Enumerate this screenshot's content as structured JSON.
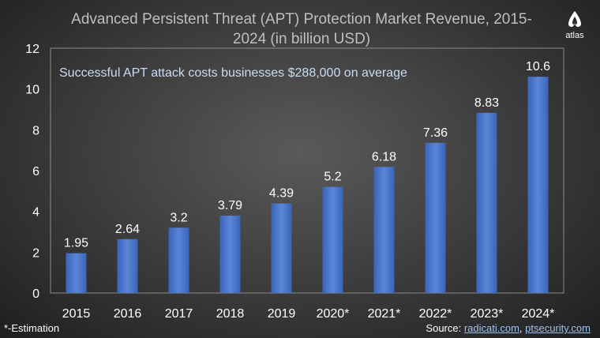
{
  "chart_data": {
    "type": "bar",
    "title_line1": "Advanced Persistent Threat (APT) Protection Market Revenue, 2015-",
    "title_line2": "2024 (in billion USD)",
    "categories": [
      "2015",
      "2016",
      "2017",
      "2018",
      "2019",
      "2020*",
      "2021*",
      "2022*",
      "2023*",
      "2024*"
    ],
    "values": [
      1.95,
      2.64,
      3.2,
      3.79,
      4.39,
      5.2,
      6.18,
      7.36,
      8.83,
      10.6
    ],
    "value_labels": [
      "1.95",
      "2.64",
      "3.2",
      "3.79",
      "4.39",
      "5.2",
      "6.18",
      "7.36",
      "8.83",
      "10.6"
    ],
    "ylim": [
      0,
      12
    ],
    "yticks": [
      "0",
      "2",
      "4",
      "6",
      "8",
      "10",
      "12"
    ],
    "annotation": "Successful APT attack costs businesses $288,000 on average",
    "bar_color": "#4472c4",
    "grid": false
  },
  "footnote": "*-Estimation",
  "source": {
    "prefix": "Source: ",
    "link1": "radicati.com",
    "separator": ", ",
    "link2": "ptsecurity.com"
  },
  "logo": {
    "icon": "atlas-logo-icon",
    "text": "atlas"
  }
}
